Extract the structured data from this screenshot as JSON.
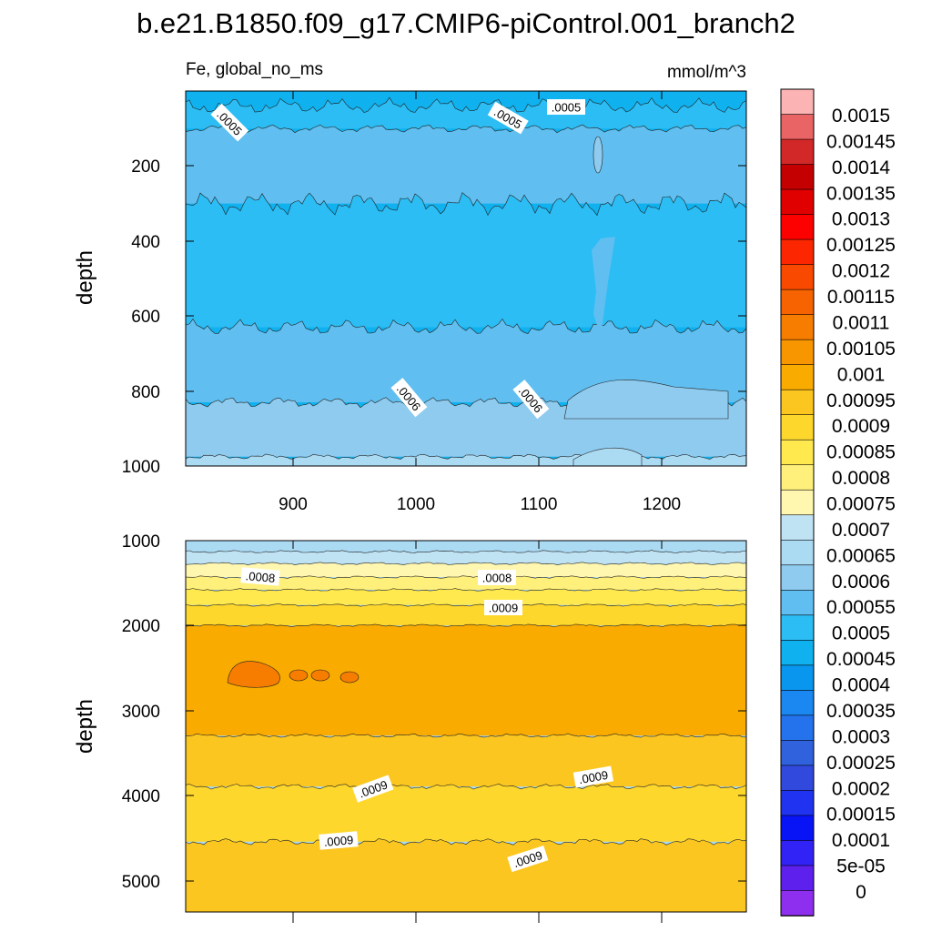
{
  "chart_data": {
    "type": "heatmap",
    "title": "b.e21.B1850.f09_g17.CMIP6-piControl.001_branch2",
    "variable_label": "Fe, global_no_ms",
    "units": "mmol/m^3",
    "colorbar": {
      "labels": [
        "0.0015",
        "0.00145",
        "0.0014",
        "0.00135",
        "0.0013",
        "0.00125",
        "0.0012",
        "0.00115",
        "0.0011",
        "0.00105",
        "0.001",
        "0.00095",
        "0.0009",
        "0.00085",
        "0.0008",
        "0.00075",
        "0.0007",
        "0.00065",
        "0.0006",
        "0.00055",
        "0.0005",
        "0.00045",
        "0.0004",
        "0.00035",
        "0.0003",
        "0.00025",
        "0.0002",
        "0.00015",
        "0.0001",
        "5e-05",
        "0"
      ],
      "colors_top_to_bottom": [
        "#fbb3b3",
        "#e96565",
        "#d32828",
        "#c40000",
        "#e00000",
        "#fd0000",
        "#fc2700",
        "#f94900",
        "#f66300",
        "#f67d00",
        "#f89600",
        "#f9ab00",
        "#fcc620",
        "#fed72d",
        "#ffe94f",
        "#fff07c",
        "#fff7b0",
        "#c0e3f4",
        "#abdaf3",
        "#8fcbef",
        "#60bff0",
        "#2cbdf4",
        "#0fb1ef",
        "#0996ee",
        "#1a88f0",
        "#2473ed",
        "#3162de",
        "#3149dc",
        "#1f33f1",
        "#0914f6",
        "#3123f5",
        "#5e20ec",
        "#8e2eee"
      ]
    },
    "panels": [
      {
        "name": "upper",
        "xlabel": "",
        "ylabel": "depth",
        "xlim": [
          813,
          1268
        ],
        "ylim": [
          0,
          1000
        ],
        "y_inverted": true,
        "xticks": [
          "900",
          "1000",
          "1100",
          "1200"
        ],
        "yticks": [
          "200",
          "400",
          "600",
          "800",
          "1000"
        ],
        "contour_labels": [
          ".0005",
          ".0005",
          ".0005",
          ".0006",
          ".0006"
        ],
        "bands": [
          {
            "top_depth": 0,
            "bottom_depth": 40,
            "color": "#0fb1ef"
          },
          {
            "top_depth": 40,
            "bottom_depth": 100,
            "color": "#2cbdf4"
          },
          {
            "top_depth": 100,
            "bottom_depth": 300,
            "color": "#60bff0"
          },
          {
            "top_depth": 300,
            "bottom_depth": 630,
            "color": "#2cbdf4"
          },
          {
            "top_depth": 630,
            "bottom_depth": 830,
            "color": "#60bff0"
          },
          {
            "top_depth": 830,
            "bottom_depth": 975,
            "color": "#8fcbef"
          },
          {
            "top_depth": 975,
            "bottom_depth": 1000,
            "color": "#abdaf3"
          }
        ]
      },
      {
        "name": "lower",
        "xlabel": "",
        "ylabel": "depth",
        "xlim": [
          813,
          1268
        ],
        "ylim": [
          1000,
          5380
        ],
        "y_inverted": true,
        "xticks": [],
        "yticks": [
          "1000",
          "2000",
          "3000",
          "4000",
          "5000"
        ],
        "contour_labels": [
          ".0008",
          ".0008",
          ".0009",
          ".0009",
          ".0009",
          ".0009",
          ".0009"
        ],
        "bands": [
          {
            "top_depth": 1000,
            "bottom_depth": 1130,
            "color": "#abdaf3"
          },
          {
            "top_depth": 1130,
            "bottom_depth": 1270,
            "color": "#c0e3f4"
          },
          {
            "top_depth": 1270,
            "bottom_depth": 1430,
            "color": "#fff7b0"
          },
          {
            "top_depth": 1430,
            "bottom_depth": 1580,
            "color": "#fff07c"
          },
          {
            "top_depth": 1580,
            "bottom_depth": 1760,
            "color": "#ffe94f"
          },
          {
            "top_depth": 1760,
            "bottom_depth": 2000,
            "color": "#fed72d"
          },
          {
            "top_depth": 2000,
            "bottom_depth": 3300,
            "color": "#f9ab00"
          },
          {
            "top_depth": 3300,
            "bottom_depth": 3900,
            "color": "#fcc620"
          },
          {
            "top_depth": 3900,
            "bottom_depth": 4550,
            "color": "#fed72d"
          },
          {
            "top_depth": 4550,
            "bottom_depth": 5380,
            "color": "#fcc620"
          }
        ]
      }
    ]
  }
}
